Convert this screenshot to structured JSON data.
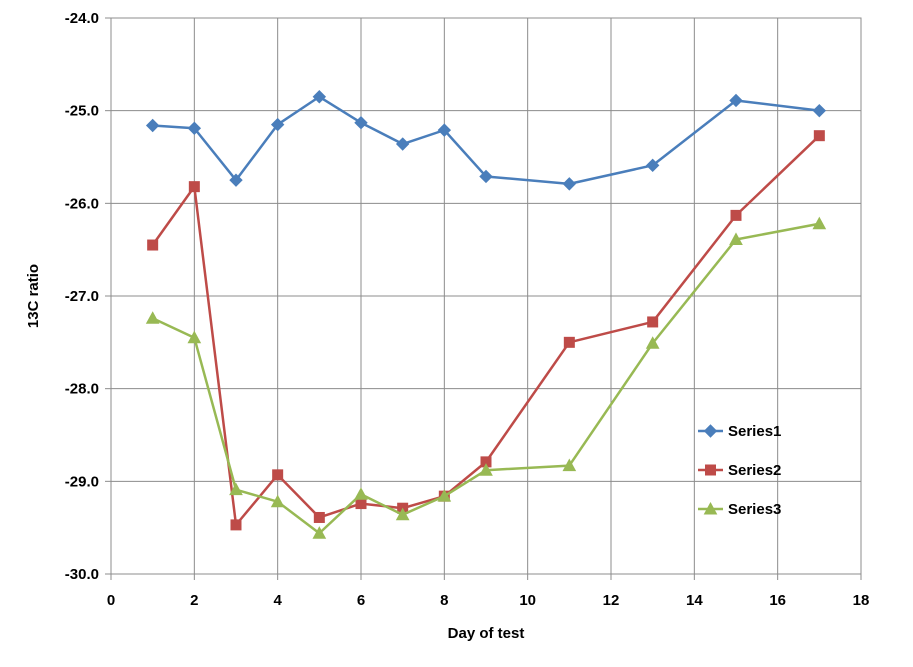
{
  "chart_data": {
    "type": "line",
    "xlabel": "Day of test",
    "ylabel": "13C ratio",
    "xlim": [
      0,
      18
    ],
    "ylim": [
      -30,
      -24
    ],
    "x_ticks": [
      0,
      2,
      4,
      6,
      8,
      10,
      12,
      14,
      16,
      18
    ],
    "x_tick_labels": [
      "0",
      "2",
      "4",
      "6",
      "8",
      "10",
      "12",
      "14",
      "16",
      "18"
    ],
    "y_ticks": [
      -24,
      -25,
      -26,
      -27,
      -28,
      -29,
      -30
    ],
    "y_tick_labels": [
      "-24.0",
      "-25.0",
      "-26.0",
      "-27.0",
      "-28.0",
      "-29.0",
      "-30.0"
    ],
    "grid": true,
    "legend_position": "right",
    "x": [
      1,
      2,
      3,
      4,
      5,
      6,
      7,
      8,
      9,
      11,
      13,
      15,
      17
    ],
    "series": [
      {
        "name": "Series1",
        "color": "#4A7EBB",
        "marker": "diamond",
        "values": [
          -25.16,
          -25.19,
          -25.75,
          -25.15,
          -24.85,
          -25.13,
          -25.36,
          -25.21,
          -25.71,
          -25.79,
          -25.59,
          -24.89,
          -25.0
        ]
      },
      {
        "name": "Series2",
        "color": "#BE4B48",
        "marker": "square",
        "values": [
          -26.45,
          -25.82,
          -29.47,
          -28.93,
          -29.39,
          -29.24,
          -29.29,
          -29.16,
          -28.79,
          -27.5,
          -27.28,
          -26.13,
          -25.27
        ]
      },
      {
        "name": "Series3",
        "color": "#98B954",
        "marker": "triangle",
        "values": [
          -27.24,
          -27.45,
          -29.09,
          -29.22,
          -29.56,
          -29.14,
          -29.36,
          -29.16,
          -28.88,
          -28.83,
          -27.51,
          -26.39,
          -26.22
        ]
      }
    ]
  }
}
